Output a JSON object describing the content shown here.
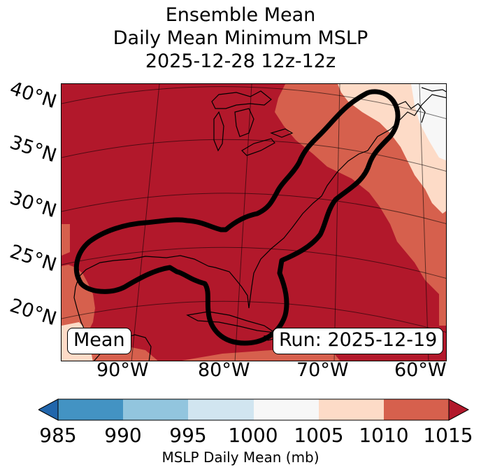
{
  "title": {
    "line1": "Ensemble Mean",
    "line2": "Daily Mean Minimum MSLP",
    "line3": "2025-12-28 12z-12z"
  },
  "lat_labels": [
    "40°N",
    "35°N",
    "30°N",
    "25°N",
    "20°N"
  ],
  "lon_labels": [
    "90°W",
    "80°W",
    "70°W",
    "60°W"
  ],
  "mean_label": "Mean",
  "run_label": "Run: 2025-12-19",
  "colorbar": {
    "ticks": [
      "985",
      "990",
      "995",
      "1000",
      "1005",
      "1010",
      "1015"
    ],
    "label": "MSLP Daily Mean (mb)",
    "colors": [
      "#2166ac",
      "#4393c3",
      "#92c5de",
      "#d1e5f0",
      "#f7f7f7",
      "#fddbc7",
      "#d6604d",
      "#b2182b"
    ]
  },
  "map_colors": {
    "deep_red": "#b2182b",
    "red": "#d6604d",
    "peach": "#fddbc7",
    "white": "#f7f7f7"
  }
}
